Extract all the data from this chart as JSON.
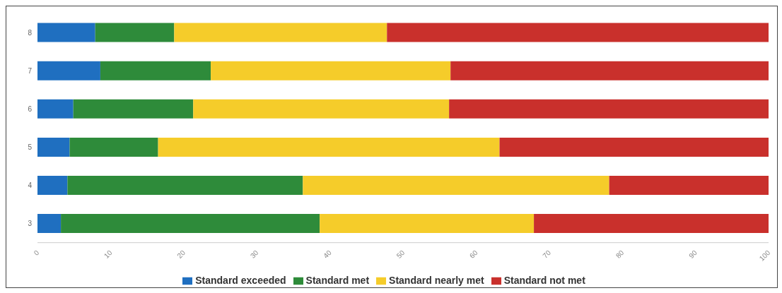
{
  "chart_data": {
    "type": "bar",
    "orientation": "horizontal",
    "stacked": true,
    "categories": [
      "8",
      "7",
      "6",
      "5",
      "4",
      "3"
    ],
    "series": [
      {
        "name": "Standard exceeded",
        "color": "#1f6fc0",
        "values": [
          7.9,
          8.6,
          4.9,
          4.4,
          4.1,
          3.2
        ]
      },
      {
        "name": "Standard met",
        "color": "#2e8b3a",
        "values": [
          10.8,
          15.1,
          16.4,
          12.1,
          32.2,
          35.4
        ]
      },
      {
        "name": "Standard nearly met",
        "color": "#f5cc2a",
        "values": [
          29.1,
          32.8,
          35.0,
          46.7,
          41.9,
          29.3
        ]
      },
      {
        "name": "Standard not met",
        "color": "#c9302c",
        "values": [
          52.2,
          43.5,
          43.7,
          36.8,
          21.8,
          32.1
        ]
      }
    ],
    "xlim": [
      0,
      100
    ],
    "xticks": [
      0,
      10,
      20,
      30,
      40,
      50,
      60,
      70,
      80,
      90,
      100
    ],
    "grid": false,
    "legend": "bottom"
  }
}
